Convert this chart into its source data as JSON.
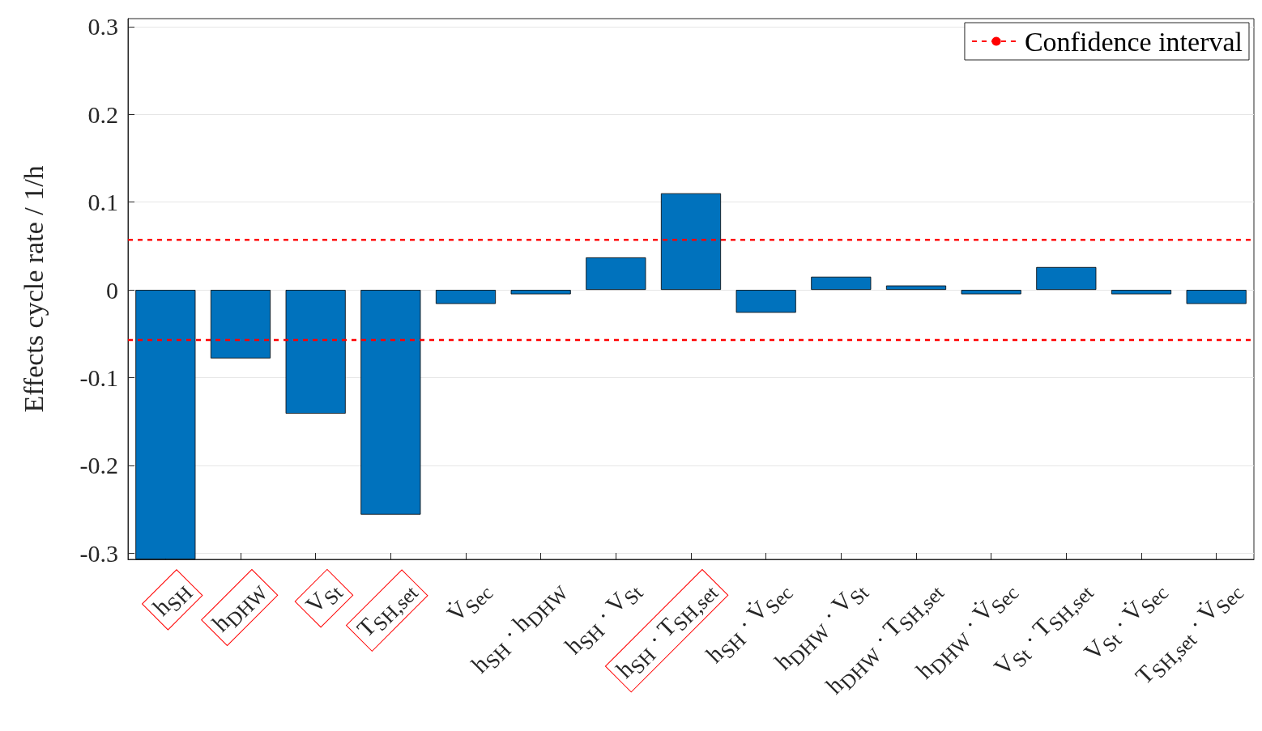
{
  "chart_data": {
    "type": "bar",
    "ylabel": "Effects cycle rate / 1/h",
    "categories": [
      "h$_{SH}$",
      "h$_{DHW}$",
      "V$_{St}$",
      "T$_{SH,set}$",
      "V̇$_{Sec}$",
      "h$_{SH}$ · h$_{DHW}$",
      "h$_{SH}$ · V$_{St}$",
      "h$_{SH}$ · T$_{SH,set}$",
      "h$_{SH}$ · V̇$_{Sec}$",
      "h$_{DHW}$ · V$_{St}$",
      "h$_{DHW}$ · T$_{SH,set}$",
      "h$_{DHW}$ · V̇$_{Sec}$",
      "V$_{St}$ · T$_{SH,set}$",
      "V$_{St}$ · V̇$_{Sec}$",
      "T$_{SH,set}$ · V̇$_{Sec}$"
    ],
    "values": [
      -0.307,
      -0.078,
      -0.141,
      -0.256,
      -0.016,
      -0.005,
      0.037,
      0.11,
      -0.026,
      0.015,
      0.005,
      -0.005,
      0.026,
      -0.005,
      -0.016
    ],
    "color": "#0072bd",
    "ylim": [
      -0.307,
      0.309
    ],
    "yticks": [
      -0.3,
      -0.2,
      -0.1,
      0,
      0.1,
      0.2,
      0.3
    ],
    "grid": "y",
    "legend": "top right",
    "ref_lines": [
      {
        "axis": "y",
        "value": 0.057,
        "label": "Confidence interval",
        "color": "#ff0000",
        "line_style": "dashed"
      },
      {
        "axis": "y",
        "value": -0.057,
        "color": "#ff0000",
        "line_style": "dashed"
      }
    ]
  }
}
